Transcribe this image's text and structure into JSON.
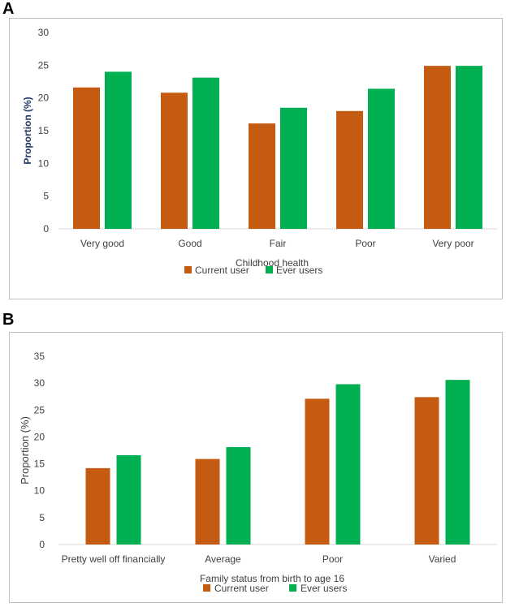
{
  "colors": {
    "current": "#C55A11",
    "ever": "#00B050",
    "text": "#404040"
  },
  "legend_names": [
    "Current user",
    "Ever users"
  ],
  "panels": [
    {
      "label": "A"
    },
    {
      "label": "B"
    }
  ],
  "chart_data": [
    {
      "type": "bar",
      "title": "",
      "xlabel": "Childhood health",
      "ylabel": "Proportion (%)",
      "ylim": [
        0,
        30
      ],
      "yticks": [
        0,
        5,
        10,
        15,
        20,
        25,
        30
      ],
      "categories": [
        "Very good",
        "Good",
        "Fair",
        "Poor",
        "Very poor"
      ],
      "series": [
        {
          "name": "Current user",
          "values": [
            21.6,
            20.8,
            16.1,
            18.0,
            24.9
          ]
        },
        {
          "name": "Ever users",
          "values": [
            24.0,
            23.1,
            18.5,
            21.4,
            24.9
          ]
        }
      ],
      "legend": "bottom"
    },
    {
      "type": "bar",
      "title": "",
      "xlabel": "Family status from birth to age 16",
      "ylabel": "Proportion (%)",
      "ylim": [
        0,
        35
      ],
      "yticks": [
        0,
        5,
        10,
        15,
        20,
        25,
        30,
        35
      ],
      "categories": [
        "Pretty well off financially",
        "Average",
        "Poor",
        "Varied"
      ],
      "series": [
        {
          "name": "Current user",
          "values": [
            14.2,
            15.9,
            27.1,
            27.4
          ]
        },
        {
          "name": "Ever users",
          "values": [
            16.6,
            18.1,
            29.8,
            30.6
          ]
        }
      ],
      "legend": "bottom"
    }
  ]
}
